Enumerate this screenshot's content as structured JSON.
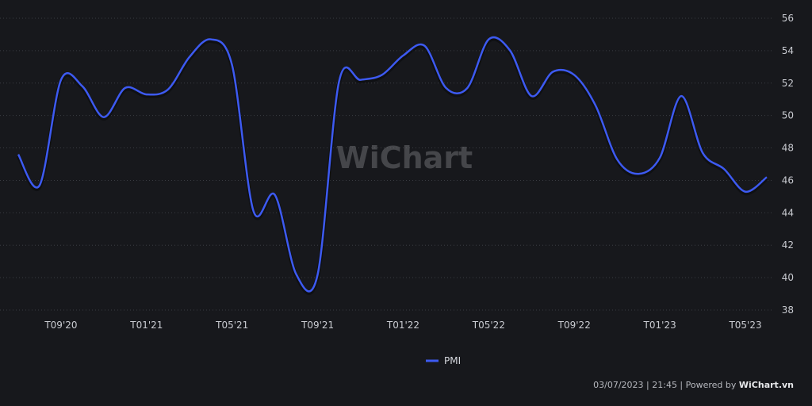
{
  "chart_data": {
    "type": "line",
    "x": [
      "07/2020",
      "08/2020",
      "09/2020",
      "10/2020",
      "11/2020",
      "12/2020",
      "01/2021",
      "02/2021",
      "03/2021",
      "04/2021",
      "05/2021",
      "06/2021",
      "07/2021",
      "08/2021",
      "09/2021",
      "10/2021",
      "11/2021",
      "12/2021",
      "01/2022",
      "02/2022",
      "03/2022",
      "04/2022",
      "05/2022",
      "06/2022",
      "07/2022",
      "08/2022",
      "09/2022",
      "10/2022",
      "11/2022",
      "12/2022",
      "01/2023",
      "02/2023",
      "03/2023",
      "04/2023",
      "05/2023",
      "06/2023"
    ],
    "x_tick_labels": [
      "T09'20",
      "T01'21",
      "T05'21",
      "T09'21",
      "T01'22",
      "T05'22",
      "T09'22",
      "T01'23",
      "T05'23"
    ],
    "x_tick_positions": [
      "09/2020",
      "01/2021",
      "05/2021",
      "09/2021",
      "01/2022",
      "05/2022",
      "09/2022",
      "01/2023",
      "05/2023"
    ],
    "series": [
      {
        "name": "PMI",
        "color": "#3d5af1",
        "values": [
          47.6,
          45.7,
          52.2,
          51.8,
          49.9,
          51.7,
          51.3,
          51.6,
          53.6,
          54.7,
          53.1,
          44.1,
          45.1,
          40.2,
          40.2,
          52.1,
          52.2,
          52.5,
          53.7,
          54.3,
          51.7,
          51.7,
          54.7,
          54.0,
          51.2,
          52.7,
          52.5,
          50.6,
          47.3,
          46.4,
          47.4,
          51.2,
          47.7,
          46.7,
          45.3,
          46.2
        ]
      }
    ],
    "ylim": [
      38,
      56
    ],
    "y_ticks": [
      38,
      40,
      42,
      44,
      46,
      48,
      50,
      52,
      54,
      56
    ],
    "y_axis_position": "right",
    "grid": true,
    "legend_position": "bottom-center"
  },
  "watermark": "WiChart",
  "footer": {
    "timestamp": "03/07/2023 | 21:45 | Powered by ",
    "brand": "WiChart.vn"
  }
}
